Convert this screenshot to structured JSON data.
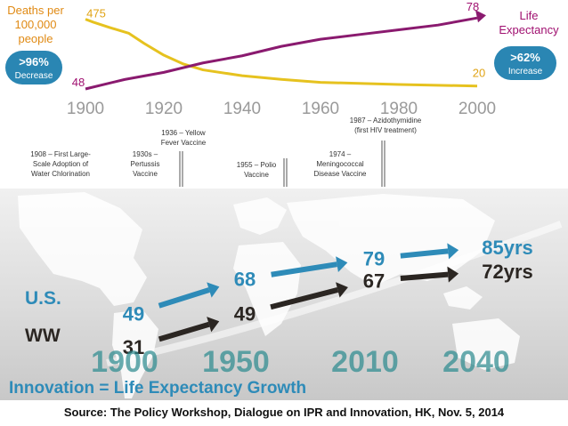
{
  "top_chart": {
    "left_label_lines": [
      "Deaths per",
      "100,000",
      "people"
    ],
    "right_label_lines": [
      "Life",
      "Expectancy"
    ],
    "left_badge": {
      "value": ">96%",
      "label": "Decrease"
    },
    "right_badge": {
      "value": ">62%",
      "label": "Increase"
    },
    "milestones": [
      {
        "lines": [
          "1908 – First Large-",
          "Scale Adoption of",
          "Water Chlorination"
        ]
      },
      {
        "lines": [
          "1930s –",
          "Pertussis",
          "Vaccine"
        ]
      },
      {
        "lines": [
          "1936 – Yellow",
          "Fever Vaccine"
        ]
      },
      {
        "lines": [
          "1955 – Polio",
          "Vaccine"
        ]
      },
      {
        "lines": [
          "1974 –",
          "Meningococcal",
          "Disease Vaccine"
        ]
      },
      {
        "lines": [
          "1987 – Azidothymidine",
          "(first HIV treatment)"
        ]
      }
    ]
  },
  "bottom_chart": {
    "us_label": "U.S.",
    "ww_label": "WW",
    "us_values_text": [
      "49",
      "68",
      "79",
      "85yrs"
    ],
    "ww_values_text": [
      "31",
      "49",
      "67",
      "72yrs"
    ],
    "footer": "Innovation = Life Expectancy Growth"
  },
  "source": "Source: The Policy Workshop,  Dialogue on IPR and Innovation, HK, Nov. 5, 2014",
  "chart_data": [
    {
      "type": "line",
      "x_ticks": [
        "1900",
        "1920",
        "1940",
        "1960",
        "1980",
        "2000"
      ],
      "xlim": [
        1900,
        2000
      ],
      "series": [
        {
          "color": "#e6c21f",
          "x": [
            1900,
            1902,
            1906,
            1911,
            1915,
            1920,
            1925,
            1930,
            1940,
            1950,
            1960,
            1980,
            2000
          ],
          "values": [
            475,
            455,
            420,
            380,
            310,
            230,
            170,
            130,
            90,
            65,
            45,
            30,
            20
          ]
        },
        {
          "color": "#8a1a6f",
          "x": [
            1900,
            1910,
            1920,
            1930,
            1940,
            1950,
            1960,
            1970,
            1980,
            1990,
            2000
          ],
          "values": [
            48,
            52,
            55,
            59,
            62,
            66,
            69,
            71,
            73,
            75,
            78
          ]
        }
      ],
      "labeled_points": [
        {
          "series": 0,
          "x": 1900,
          "label": "475"
        },
        {
          "series": 0,
          "x": 2000,
          "label": "20"
        },
        {
          "series": 1,
          "x": 1900,
          "label": "48"
        },
        {
          "series": 1,
          "x": 2000,
          "label": "78"
        }
      ]
    },
    {
      "type": "line",
      "categories": [
        "1900",
        "1950",
        "2010",
        "2040"
      ],
      "series": [
        {
          "name": "U.S.",
          "color": "#2e8bb8",
          "values": [
            49,
            68,
            79,
            85
          ]
        },
        {
          "name": "WW",
          "color": "#2b2622",
          "values": [
            31,
            49,
            67,
            72
          ]
        }
      ]
    }
  ]
}
